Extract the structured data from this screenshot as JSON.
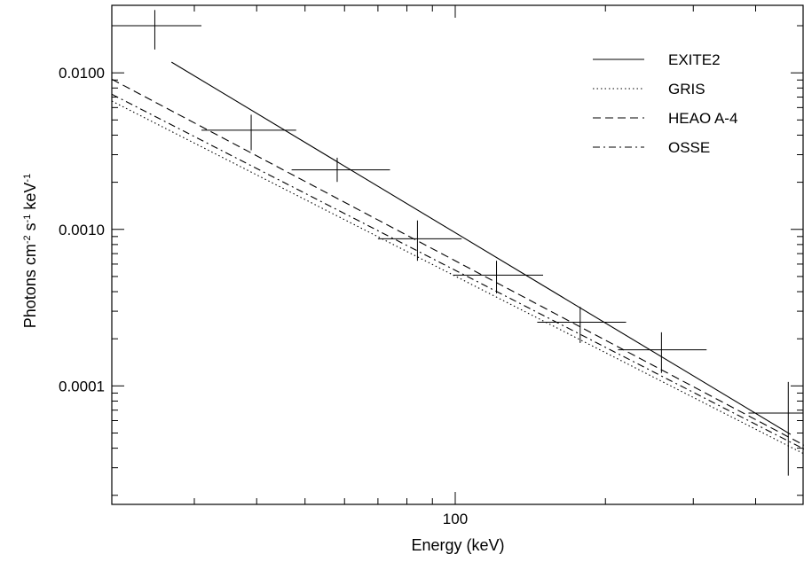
{
  "chart_data": {
    "type": "scatter",
    "title": "",
    "xlabel": "Energy (keV)",
    "ylabel": {
      "base": "Photons cm",
      "sup1": "-2",
      "mid": " s",
      "sup2": "-1",
      "mid2": " keV",
      "sup3": "-1"
    },
    "x_scale": "log",
    "y_scale": "log",
    "xlim": [
      20.5,
      500
    ],
    "ylim": [
      1.75e-05,
      0.027
    ],
    "grid": false,
    "legend_position": "top-right",
    "x_ticks": [
      {
        "value": 100,
        "label": "100"
      }
    ],
    "x_minor_ticks": [
      30,
      40,
      50,
      60,
      70,
      80,
      90,
      200,
      300,
      400,
      500
    ],
    "y_ticks": [
      {
        "value": 0.01,
        "label": "0.0100"
      },
      {
        "value": 0.001,
        "label": "0.0010"
      },
      {
        "value": 0.0001,
        "label": "0.0001"
      }
    ],
    "y_minor_ticks": [
      2e-05,
      3e-05,
      4e-05,
      5e-05,
      6e-05,
      7e-05,
      8e-05,
      9e-05,
      0.0002,
      0.0003,
      0.0004,
      0.0005,
      0.0006,
      0.0007,
      0.0008,
      0.0009,
      0.002,
      0.003,
      0.004,
      0.005,
      0.006,
      0.007,
      0.008,
      0.009,
      0.02
    ],
    "data_points": [
      {
        "x": 25,
        "xlo": 20.5,
        "xhi": 31,
        "y": 0.02,
        "ylo": 0.0141,
        "yhi": 0.0252
      },
      {
        "x": 39,
        "xlo": 31,
        "xhi": 48,
        "y": 0.0043,
        "ylo": 0.0032,
        "yhi": 0.0054
      },
      {
        "x": 58,
        "xlo": 47,
        "xhi": 74,
        "y": 0.0024,
        "ylo": 0.00201,
        "yhi": 0.00287
      },
      {
        "x": 84,
        "xlo": 70,
        "xhi": 103,
        "y": 0.00087,
        "ylo": 0.00063,
        "yhi": 0.00114
      },
      {
        "x": 121,
        "xlo": 99,
        "xhi": 150,
        "y": 0.00051,
        "ylo": 0.00039,
        "yhi": 0.00063
      },
      {
        "x": 178,
        "xlo": 146,
        "xhi": 220,
        "y": 0.000255,
        "ylo": 0.000188,
        "yhi": 0.00032
      },
      {
        "x": 259,
        "xlo": 212,
        "xhi": 319,
        "y": 0.00017,
        "ylo": 0.000121,
        "yhi": 0.00022
      },
      {
        "x": 465,
        "xlo": 387,
        "xhi": 500,
        "y": 6.7e-05,
        "ylo": 2.67e-05,
        "yhi": 0.000106
      }
    ],
    "series": [
      {
        "name": "EXITE2",
        "style": "solid",
        "x": [
          27,
          470
        ],
        "y": [
          0.0117,
          4.9e-05
        ]
      },
      {
        "name": "GRIS",
        "style": "dotted",
        "x": [
          20.5,
          500
        ],
        "y": [
          0.0066,
          3.68e-05
        ]
      },
      {
        "name": "HEAO A-4",
        "style": "dashed",
        "x": [
          20.5,
          500
        ],
        "y": [
          0.0091,
          4.18e-05
        ]
      },
      {
        "name": "OSSE",
        "style": "dashdot",
        "x": [
          20.5,
          500
        ],
        "y": [
          0.0073,
          3.95e-05
        ]
      }
    ]
  }
}
